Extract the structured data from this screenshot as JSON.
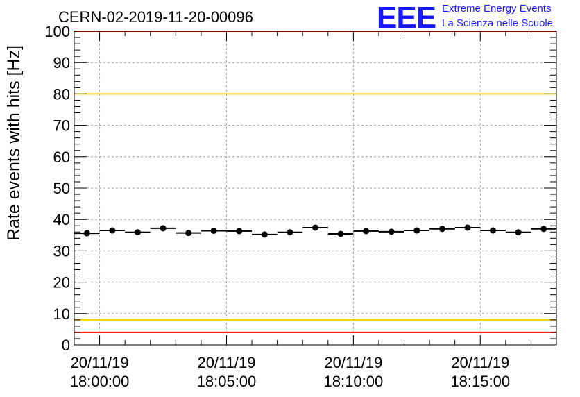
{
  "chart_data": {
    "type": "scatter",
    "title": "CERN-02-2019-11-20-00096",
    "ylabel": "Rate events with hits [Hz]",
    "xlabel": "",
    "ylim": [
      0,
      100
    ],
    "y_ticks": [
      "0",
      "10",
      "20",
      "30",
      "40",
      "50",
      "60",
      "70",
      "80",
      "90",
      "100"
    ],
    "x_ticks": [
      {
        "date": "20/11/19",
        "time": "18:00:00"
      },
      {
        "date": "20/11/19",
        "time": "18:05:00"
      },
      {
        "date": "20/11/19",
        "time": "18:10:00"
      },
      {
        "date": "20/11/19",
        "time": "18:15:00"
      }
    ],
    "grid": true,
    "x_start": "20/11/19 17:59:00",
    "x_end": "20/11/19 18:18:00",
    "bin_width_seconds": 60,
    "series": [
      {
        "x": [
          "17:59:30",
          "18:00:30",
          "18:01:30",
          "18:02:30",
          "18:03:30",
          "18:04:30",
          "18:05:30",
          "18:06:30",
          "18:07:30",
          "18:08:30",
          "18:09:30",
          "18:10:30",
          "18:11:30",
          "18:12:30",
          "18:13:30",
          "18:14:30",
          "18:15:30",
          "18:16:30",
          "18:17:30"
        ],
        "values": [
          35.6,
          36.5,
          35.9,
          37.2,
          35.7,
          36.4,
          36.3,
          35.2,
          35.9,
          37.4,
          35.4,
          36.3,
          36.1,
          36.5,
          37.0,
          37.4,
          36.5,
          35.9,
          37.0
        ],
        "color": "#000000"
      }
    ],
    "reference_lines": [
      {
        "value": 100,
        "color": "#ff0000"
      },
      {
        "value": 80,
        "color": "#ffcc00"
      },
      {
        "value": 8,
        "color": "#ffcc00"
      },
      {
        "value": 4,
        "color": "#ff0000"
      }
    ]
  },
  "logo": {
    "mark": "EEE",
    "line1": "Extreme Energy Events",
    "line2": "La Scienza nelle Scuole",
    "color": "#1a1aff"
  },
  "colors": {
    "grid": "#a0a0a0",
    "axis": "#000000",
    "limit_red": "#ff0000",
    "limit_yellow": "#ffcc00"
  }
}
